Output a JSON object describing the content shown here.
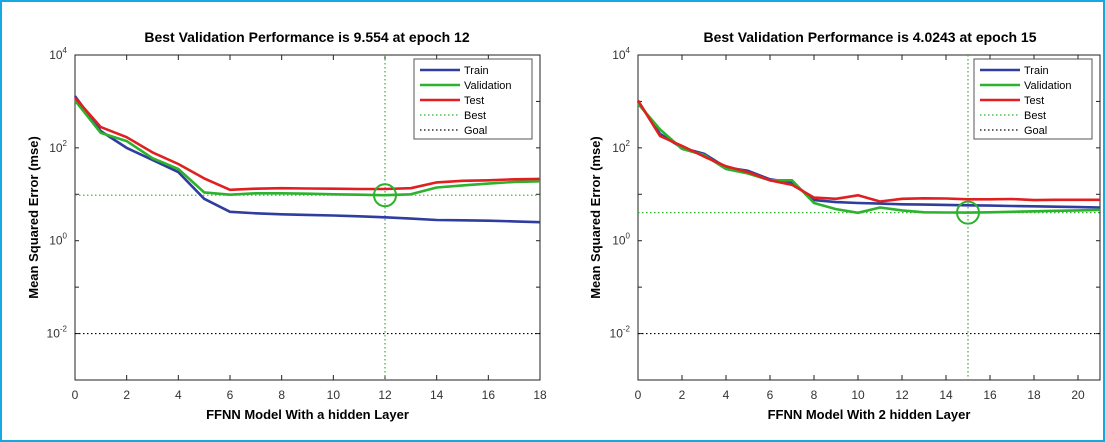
{
  "chart_data": [
    {
      "type": "line",
      "title": "Best Validation Performance is 9.554 at epoch 12",
      "xlabel": "FFNN Model With a hidden Layer",
      "ylabel": "Mean Squared Error  (mse)",
      "xlim": [
        0,
        18
      ],
      "ylim": [
        0.001,
        10000
      ],
      "yscale": "log",
      "xticks": [
        0,
        2,
        4,
        6,
        8,
        10,
        12,
        14,
        16,
        18
      ],
      "yticks": [
        {
          "base": "10",
          "exp": "-2",
          "value": 0.01
        },
        {
          "base": "10",
          "exp": "0",
          "value": 1
        },
        {
          "base": "10",
          "exp": "2",
          "value": 100
        },
        {
          "base": "10",
          "exp": "4",
          "value": 10000
        }
      ],
      "legend_position": "top-right",
      "x": [
        0,
        1,
        2,
        3,
        4,
        5,
        6,
        7,
        8,
        9,
        10,
        11,
        12,
        13,
        14,
        15,
        16,
        17,
        18
      ],
      "series": [
        {
          "name": "Train",
          "color": "#2e3d9e",
          "style": "solid",
          "values": [
            1300,
            230,
            100,
            55,
            30,
            8,
            4.2,
            3.9,
            3.7,
            3.6,
            3.5,
            3.35,
            3.2,
            3.0,
            2.8,
            2.75,
            2.7,
            2.6,
            2.5
          ]
        },
        {
          "name": "Validation",
          "color": "#2db22d",
          "style": "solid",
          "values": [
            1050,
            210,
            140,
            60,
            35,
            11,
            9.8,
            10.5,
            10.5,
            10.3,
            10,
            9.8,
            9.554,
            10,
            14,
            15.5,
            17,
            18.5,
            19
          ]
        },
        {
          "name": "Test",
          "color": "#e02020",
          "style": "solid",
          "values": [
            1200,
            280,
            170,
            80,
            45,
            22,
            12.5,
            13.2,
            13.5,
            13.3,
            13.2,
            13,
            13,
            13.5,
            18,
            19.5,
            20,
            21,
            21.5
          ]
        }
      ],
      "best": {
        "label": "Best",
        "epoch": 12,
        "value": 9.554,
        "color": "#2db22d"
      },
      "goal": {
        "label": "Goal",
        "value": 0.01,
        "color": "#000000"
      }
    },
    {
      "type": "line",
      "title": "Best Validation Performance is 4.0243 at epoch 15",
      "xlabel": "FFNN Model With 2 hidden Layer",
      "ylabel": "Mean Squared Error  (mse)",
      "xlim": [
        0,
        21
      ],
      "ylim": [
        0.001,
        10000
      ],
      "yscale": "log",
      "xticks": [
        0,
        2,
        4,
        6,
        8,
        10,
        12,
        14,
        16,
        18,
        20
      ],
      "yticks": [
        {
          "base": "10",
          "exp": "-2",
          "value": 0.01
        },
        {
          "base": "10",
          "exp": "0",
          "value": 1
        },
        {
          "base": "10",
          "exp": "2",
          "value": 100
        },
        {
          "base": "10",
          "exp": "4",
          "value": 10000
        }
      ],
      "legend_position": "top-right",
      "x": [
        0,
        1,
        2,
        3,
        4,
        5,
        6,
        7,
        8,
        9,
        10,
        11,
        12,
        13,
        14,
        15,
        16,
        17,
        18,
        19,
        20,
        21
      ],
      "series": [
        {
          "name": "Train",
          "color": "#2e3d9e",
          "style": "solid",
          "values": [
            1000,
            200,
            100,
            75,
            38,
            32,
            21,
            18,
            7.5,
            6.8,
            6.5,
            6.3,
            6.1,
            6.0,
            5.9,
            5.8,
            5.7,
            5.6,
            5.5,
            5.4,
            5.3,
            5.2
          ]
        },
        {
          "name": "Validation",
          "color": "#2db22d",
          "style": "solid",
          "values": [
            900,
            250,
            95,
            70,
            35,
            28,
            20,
            20,
            6.5,
            4.8,
            4.0,
            5.2,
            4.5,
            4.1,
            4.05,
            4.0243,
            4.1,
            4.2,
            4.3,
            4.4,
            4.5,
            4.6
          ]
        },
        {
          "name": "Test",
          "color": "#e02020",
          "style": "solid",
          "values": [
            1050,
            180,
            110,
            65,
            40,
            30,
            20,
            16,
            8.5,
            8,
            9.5,
            7,
            8,
            8.2,
            8.1,
            7.8,
            7.8,
            7.9,
            7.5,
            7.6,
            7.6,
            7.6
          ]
        }
      ],
      "best": {
        "label": "Best",
        "epoch": 15,
        "value": 4.0243,
        "color": "#2db22d"
      },
      "goal": {
        "label": "Goal",
        "value": 0.01,
        "color": "#000000"
      }
    }
  ]
}
